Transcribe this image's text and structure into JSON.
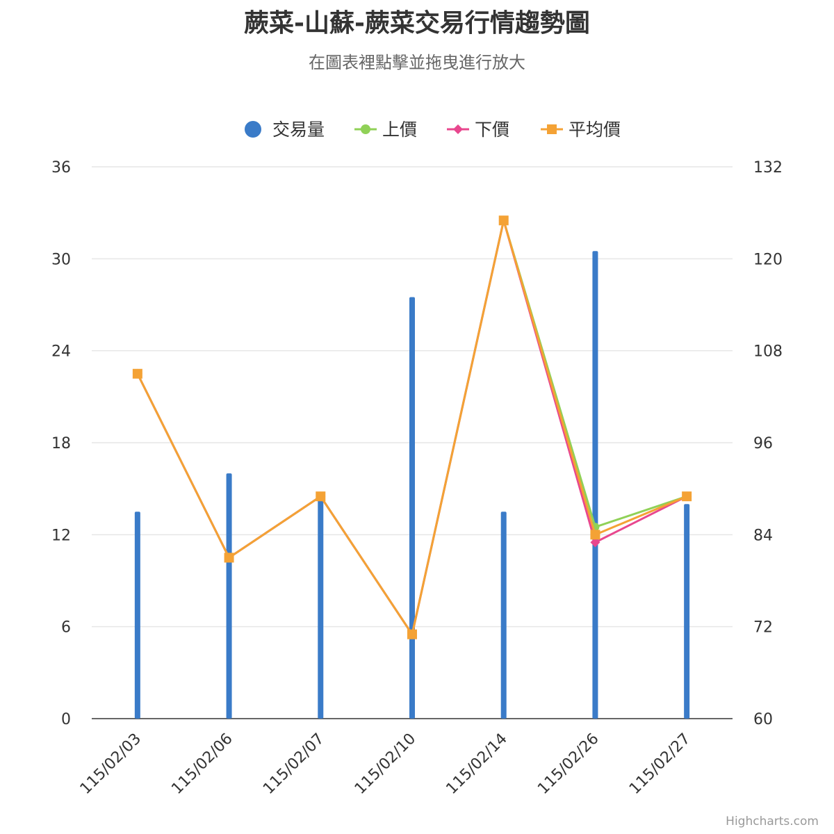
{
  "title": "蕨菜-山蘇-蕨菜交易行情趨勢圖",
  "subtitle": "在圖表裡點擊並拖曳進行放大",
  "credits": "Highcharts.com",
  "colors": {
    "volume": "#3a7bc8",
    "upper": "#90d157",
    "lower": "#e8478e",
    "average": "#f4a235",
    "grid": "#e6e6e6",
    "axis": "#333333",
    "text": "#333333"
  },
  "chart_data": {
    "type": "bar+line",
    "categories": [
      "115/02/03",
      "115/02/06",
      "115/02/07",
      "115/02/10",
      "115/02/14",
      "115/02/26",
      "115/02/27"
    ],
    "left_axis": {
      "min": 0,
      "max": 36,
      "ticks": [
        "0",
        "6",
        "12",
        "18",
        "24",
        "30",
        "36"
      ]
    },
    "right_axis": {
      "min": 60,
      "max": 132,
      "ticks": [
        "60",
        "72",
        "84",
        "96",
        "108",
        "120",
        "132"
      ]
    },
    "grid": true,
    "legend_position": "top-center",
    "series": [
      {
        "name": "交易量",
        "type": "bar",
        "axis": "left",
        "marker": "circle",
        "values": [
          13.5,
          16,
          14.5,
          27.5,
          13.5,
          30.5,
          14
        ]
      },
      {
        "name": "上價",
        "type": "line",
        "axis": "right",
        "marker": "circle",
        "values": [
          105,
          81,
          89,
          71,
          125,
          85,
          89
        ]
      },
      {
        "name": "下價",
        "type": "line",
        "axis": "right",
        "marker": "diamond",
        "values": [
          105,
          81,
          89,
          71,
          125,
          83,
          89
        ]
      },
      {
        "name": "平均價",
        "type": "line",
        "axis": "right",
        "marker": "square",
        "values": [
          105,
          81,
          89,
          71,
          125,
          84,
          89
        ]
      }
    ]
  }
}
